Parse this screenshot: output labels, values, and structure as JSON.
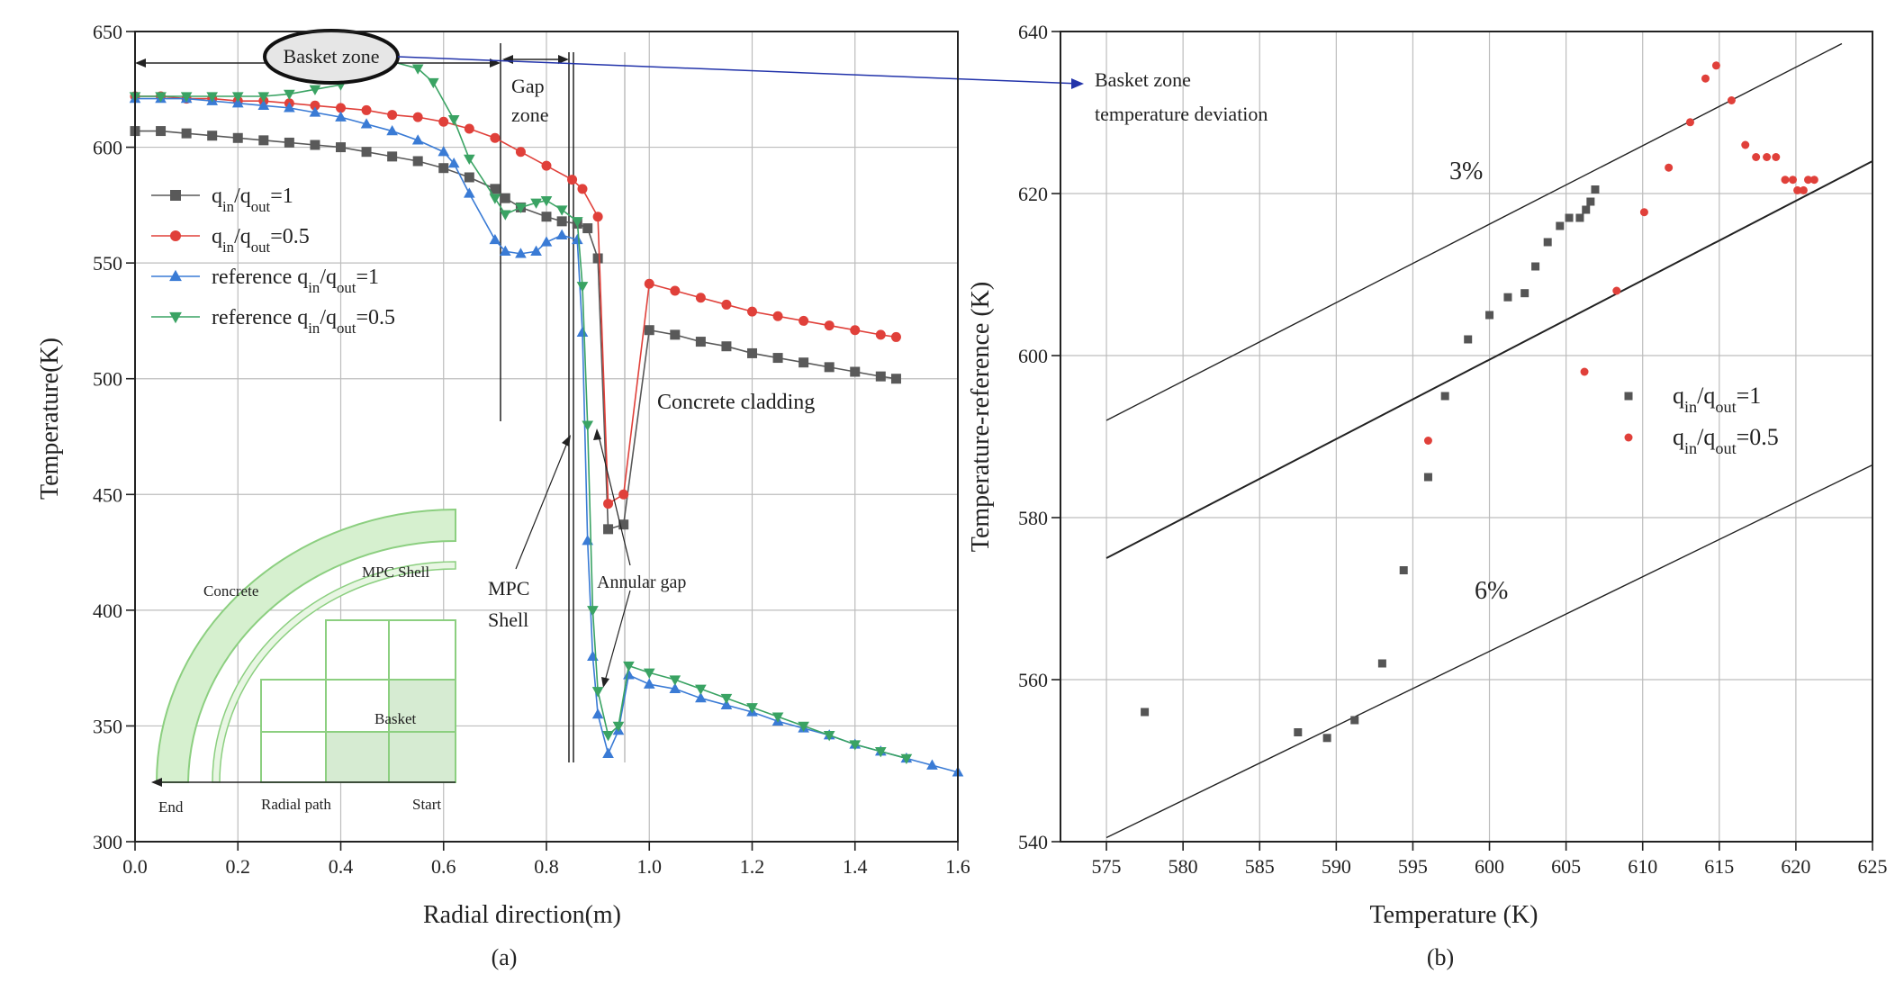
{
  "chart_data": [
    {
      "panel": "(a)",
      "type": "line",
      "xlabel": "Radial direction(m)",
      "ylabel": "Temperature(K)",
      "xlim": [
        0.0,
        1.6
      ],
      "ylim": [
        300,
        650
      ],
      "xticks": [
        "0.0",
        "0.2",
        "0.4",
        "0.6",
        "0.8",
        "1.0",
        "1.2",
        "1.4",
        "1.6"
      ],
      "yticks": [
        "300",
        "350",
        "400",
        "450",
        "500",
        "550",
        "600",
        "650"
      ],
      "grid": true,
      "legend_position": "left-middle",
      "series": [
        {
          "name": "q_in/q_out=1",
          "color": "#595959",
          "marker": "square",
          "points": [
            [
              0.0,
              607
            ],
            [
              0.05,
              607
            ],
            [
              0.1,
              606
            ],
            [
              0.15,
              605
            ],
            [
              0.2,
              604
            ],
            [
              0.25,
              603
            ],
            [
              0.3,
              602
            ],
            [
              0.35,
              601
            ],
            [
              0.4,
              600
            ],
            [
              0.45,
              598
            ],
            [
              0.5,
              596
            ],
            [
              0.55,
              594
            ],
            [
              0.6,
              591
            ],
            [
              0.65,
              587
            ],
            [
              0.7,
              582
            ],
            [
              0.72,
              578
            ],
            [
              0.75,
              574
            ],
            [
              0.8,
              570
            ],
            [
              0.83,
              568
            ],
            [
              0.86,
              567
            ],
            [
              0.88,
              565
            ],
            [
              0.9,
              552
            ],
            [
              0.92,
              435
            ],
            [
              0.95,
              437
            ],
            [
              1.0,
              521
            ],
            [
              1.05,
              519
            ],
            [
              1.1,
              516
            ],
            [
              1.15,
              514
            ],
            [
              1.2,
              511
            ],
            [
              1.25,
              509
            ],
            [
              1.3,
              507
            ],
            [
              1.35,
              505
            ],
            [
              1.4,
              503
            ],
            [
              1.45,
              501
            ],
            [
              1.48,
              500
            ]
          ]
        },
        {
          "name": "q_in/q_out=0.5",
          "color": "#e0403a",
          "marker": "circle",
          "points": [
            [
              0.0,
              622
            ],
            [
              0.05,
              622
            ],
            [
              0.1,
              621
            ],
            [
              0.15,
              621
            ],
            [
              0.2,
              620
            ],
            [
              0.25,
              620
            ],
            [
              0.3,
              619
            ],
            [
              0.35,
              618
            ],
            [
              0.4,
              617
            ],
            [
              0.45,
              616
            ],
            [
              0.5,
              614
            ],
            [
              0.55,
              613
            ],
            [
              0.6,
              611
            ],
            [
              0.65,
              608
            ],
            [
              0.7,
              604
            ],
            [
              0.75,
              598
            ],
            [
              0.8,
              592
            ],
            [
              0.85,
              586
            ],
            [
              0.87,
              582
            ],
            [
              0.9,
              570
            ],
            [
              0.92,
              446
            ],
            [
              0.95,
              450
            ],
            [
              1.0,
              541
            ],
            [
              1.05,
              538
            ],
            [
              1.1,
              535
            ],
            [
              1.15,
              532
            ],
            [
              1.2,
              529
            ],
            [
              1.25,
              527
            ],
            [
              1.3,
              525
            ],
            [
              1.35,
              523
            ],
            [
              1.4,
              521
            ],
            [
              1.45,
              519
            ],
            [
              1.48,
              518
            ]
          ]
        },
        {
          "name": "reference q_in/q_out=1",
          "color": "#3a7bd5",
          "marker": "triangle-up",
          "points": [
            [
              0.0,
              621
            ],
            [
              0.05,
              621
            ],
            [
              0.1,
              621
            ],
            [
              0.15,
              620
            ],
            [
              0.2,
              619
            ],
            [
              0.25,
              618
            ],
            [
              0.3,
              617
            ],
            [
              0.35,
              615
            ],
            [
              0.4,
              613
            ],
            [
              0.45,
              610
            ],
            [
              0.5,
              607
            ],
            [
              0.55,
              603
            ],
            [
              0.6,
              598
            ],
            [
              0.62,
              593
            ],
            [
              0.65,
              580
            ],
            [
              0.7,
              560
            ],
            [
              0.72,
              555
            ],
            [
              0.75,
              554
            ],
            [
              0.78,
              555
            ],
            [
              0.8,
              559
            ],
            [
              0.83,
              562
            ],
            [
              0.86,
              560
            ],
            [
              0.87,
              520
            ],
            [
              0.88,
              430
            ],
            [
              0.89,
              380
            ],
            [
              0.9,
              355
            ],
            [
              0.92,
              338
            ],
            [
              0.94,
              348
            ],
            [
              0.96,
              372
            ],
            [
              1.0,
              368
            ],
            [
              1.05,
              366
            ],
            [
              1.1,
              362
            ],
            [
              1.15,
              359
            ],
            [
              1.2,
              356
            ],
            [
              1.25,
              352
            ],
            [
              1.3,
              349
            ],
            [
              1.35,
              346
            ],
            [
              1.4,
              342
            ],
            [
              1.45,
              339
            ],
            [
              1.5,
              336
            ],
            [
              1.55,
              333
            ],
            [
              1.6,
              330
            ]
          ]
        },
        {
          "name": "reference q_in/q_out=0.5",
          "color": "#3aa363",
          "marker": "triangle-down",
          "points": [
            [
              0.0,
              622
            ],
            [
              0.05,
              622
            ],
            [
              0.1,
              622
            ],
            [
              0.15,
              622
            ],
            [
              0.2,
              622
            ],
            [
              0.25,
              622
            ],
            [
              0.3,
              623
            ],
            [
              0.35,
              625
            ],
            [
              0.4,
              627
            ],
            [
              0.45,
              633
            ],
            [
              0.5,
              637
            ],
            [
              0.55,
              634
            ],
            [
              0.58,
              628
            ],
            [
              0.62,
              612
            ],
            [
              0.65,
              595
            ],
            [
              0.7,
              578
            ],
            [
              0.72,
              571
            ],
            [
              0.75,
              574
            ],
            [
              0.78,
              576
            ],
            [
              0.8,
              577
            ],
            [
              0.83,
              573
            ],
            [
              0.86,
              568
            ],
            [
              0.87,
              540
            ],
            [
              0.88,
              480
            ],
            [
              0.89,
              400
            ],
            [
              0.9,
              365
            ],
            [
              0.92,
              346
            ],
            [
              0.94,
              350
            ],
            [
              0.96,
              376
            ],
            [
              1.0,
              373
            ],
            [
              1.05,
              370
            ],
            [
              1.1,
              366
            ],
            [
              1.15,
              362
            ],
            [
              1.2,
              358
            ],
            [
              1.25,
              354
            ],
            [
              1.3,
              350
            ],
            [
              1.35,
              346
            ],
            [
              1.4,
              342
            ],
            [
              1.45,
              339
            ],
            [
              1.5,
              336
            ]
          ]
        }
      ],
      "annotations": [
        "Basket zone",
        "Gap zone",
        "Concrete cladding",
        "MPC Shell",
        "Annular gap"
      ],
      "inset_labels": [
        "Concrete",
        "MPC Shell",
        "Basket",
        "End",
        "Radial path",
        "Start"
      ]
    },
    {
      "panel": "(b)",
      "type": "scatter",
      "xlabel": "Temperature (K)",
      "ylabel": "Temperature-reference (K)",
      "xlim": [
        572,
        625
      ],
      "ylim": [
        540,
        640
      ],
      "xticks": [
        "575",
        "580",
        "585",
        "590",
        "595",
        "600",
        "605",
        "610",
        "615",
        "620",
        "625"
      ],
      "yticks": [
        "540",
        "560",
        "580",
        "600",
        "620",
        "640"
      ],
      "grid": true,
      "legend_position": "right-middle",
      "reference_lines": [
        {
          "label": "3%",
          "points": [
            [
              575,
              592.0
            ],
            [
              623,
              638.5
            ]
          ]
        },
        {
          "label": "",
          "points": [
            [
              575,
              575.0
            ],
            [
              625,
              624.0
            ]
          ]
        },
        {
          "label": "6%",
          "points": [
            [
              575,
              540.5
            ],
            [
              625,
              586.5
            ]
          ]
        }
      ],
      "series": [
        {
          "name": "q_in/q_out=1",
          "color": "#555555",
          "marker": "square",
          "points": [
            [
              577.5,
              556
            ],
            [
              587.5,
              553.5
            ],
            [
              589.4,
              552.8
            ],
            [
              591.2,
              555
            ],
            [
              593,
              562
            ],
            [
              594.4,
              573.5
            ],
            [
              596,
              585
            ],
            [
              597.1,
              595
            ],
            [
              598.6,
              602
            ],
            [
              600,
              605
            ],
            [
              601.2,
              607.2
            ],
            [
              602.3,
              607.7
            ],
            [
              603,
              611
            ],
            [
              603.8,
              614
            ],
            [
              604.6,
              616
            ],
            [
              605.2,
              617
            ],
            [
              605.9,
              617
            ],
            [
              606.3,
              618
            ],
            [
              606.6,
              619
            ],
            [
              606.9,
              620.5
            ]
          ]
        },
        {
          "name": "q_in/q_out=0.5",
          "color": "#e0403a",
          "marker": "circle",
          "points": [
            [
              596,
              589.5
            ],
            [
              606.2,
              598
            ],
            [
              608.3,
              608
            ],
            [
              610.1,
              617.7
            ],
            [
              611.7,
              623.2
            ],
            [
              613.1,
              628.8
            ],
            [
              614.1,
              634.2
            ],
            [
              614.8,
              635.8
            ],
            [
              615.8,
              631.5
            ],
            [
              616.7,
              626
            ],
            [
              617.4,
              624.5
            ],
            [
              618.1,
              624.5
            ],
            [
              618.7,
              624.5
            ],
            [
              619.3,
              621.7
            ],
            [
              619.8,
              621.7
            ],
            [
              620.1,
              620.4
            ],
            [
              620.5,
              620.4
            ],
            [
              620.8,
              621.7
            ],
            [
              621.2,
              621.7
            ]
          ]
        }
      ],
      "annotations": [
        "Basket zone",
        "temperature deviation"
      ]
    }
  ],
  "captions": {
    "a": "(a)",
    "b": "(b)"
  }
}
